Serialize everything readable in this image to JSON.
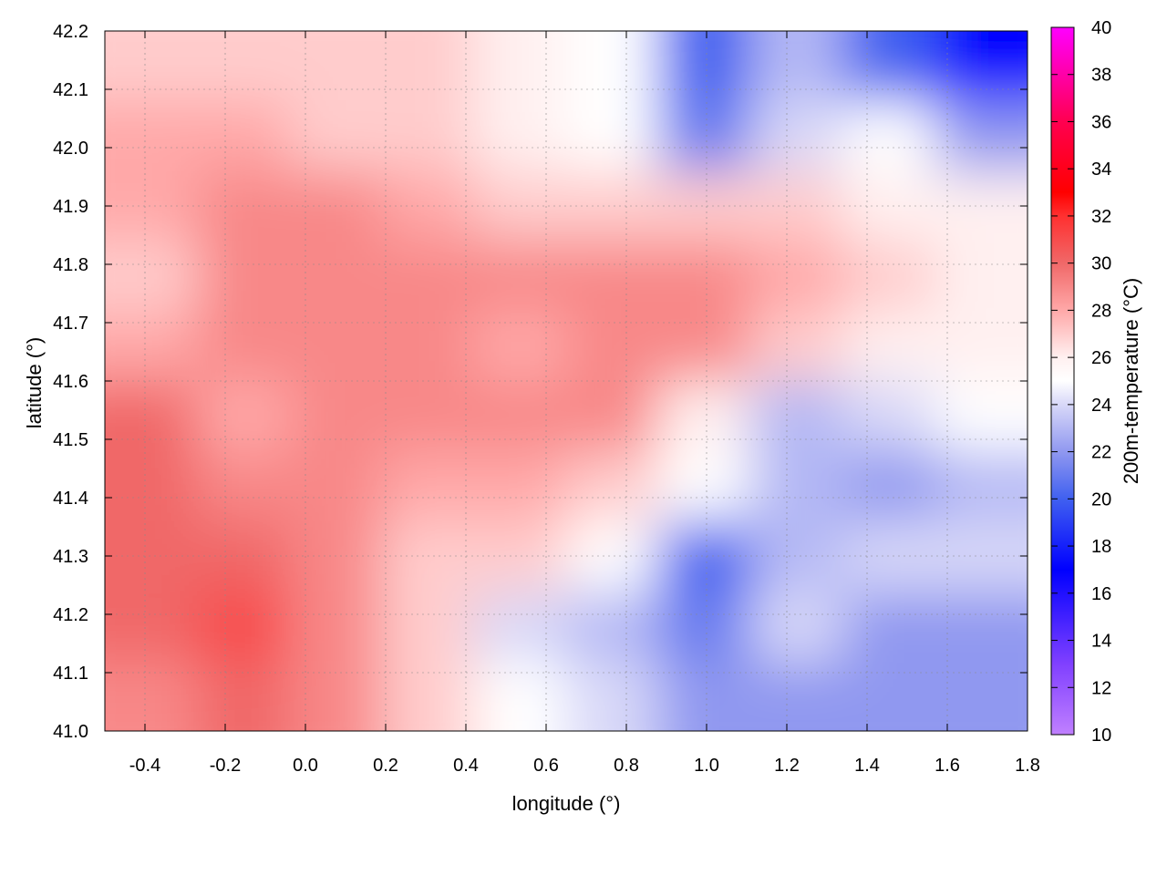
{
  "chart_data": {
    "type": "heatmap",
    "title": "",
    "xlabel": "longitude (°)",
    "ylabel": "latitude (°)",
    "colorbar_label": "200m-temperature (°C)",
    "xlim": [
      -0.5,
      1.8
    ],
    "ylim": [
      41.0,
      42.2
    ],
    "clim": [
      10,
      40
    ],
    "x_ticks": [
      "-0.4",
      "-0.2",
      "0.0",
      "0.2",
      "0.4",
      "0.6",
      "0.8",
      "1.0",
      "1.2",
      "1.4",
      "1.6",
      "1.8"
    ],
    "y_ticks": [
      "41.0",
      "41.1",
      "41.2",
      "41.3",
      "41.4",
      "41.5",
      "41.6",
      "41.7",
      "41.8",
      "41.9",
      "42.0",
      "42.1",
      "42.2"
    ],
    "colorbar_ticks": [
      "10",
      "12",
      "14",
      "16",
      "18",
      "20",
      "22",
      "24",
      "26",
      "28",
      "30",
      "32",
      "34",
      "36",
      "38",
      "40"
    ],
    "grid": true,
    "colormap": [
      [
        10,
        "#c080ff"
      ],
      [
        13,
        "#8040ff"
      ],
      [
        17,
        "#0000ff"
      ],
      [
        20,
        "#4060f0"
      ],
      [
        22,
        "#9098f0"
      ],
      [
        24,
        "#d8d8f8"
      ],
      [
        25,
        "#ffffff"
      ],
      [
        26,
        "#fff0f0"
      ],
      [
        28,
        "#ffa8a8"
      ],
      [
        30,
        "#f06868"
      ],
      [
        32,
        "#ff3030"
      ],
      [
        33,
        "#ff0000"
      ],
      [
        36,
        "#ff0050"
      ],
      [
        40,
        "#ff00ff"
      ]
    ],
    "grid_lon_edges": [
      -0.5,
      -0.27,
      -0.04,
      0.19,
      0.42,
      0.65,
      0.88,
      1.11,
      1.34,
      1.57,
      1.8
    ],
    "grid_lat_edges_top_to_bottom": [
      42.2,
      42.08,
      41.96,
      41.84,
      41.72,
      41.6,
      41.48,
      41.36,
      41.24,
      41.12,
      41.0
    ],
    "values": [
      [
        27,
        27,
        27,
        27,
        26,
        25,
        20,
        23,
        20,
        17
      ],
      [
        28,
        28,
        27,
        27,
        26,
        25,
        21,
        24,
        25,
        22
      ],
      [
        28,
        29,
        29,
        28,
        27,
        27,
        27,
        27,
        26,
        26
      ],
      [
        27,
        29,
        29,
        29,
        29,
        29,
        29,
        28,
        27,
        26
      ],
      [
        28,
        29,
        29,
        29,
        28,
        29,
        29,
        27,
        26,
        26
      ],
      [
        30,
        28,
        29,
        29,
        29,
        29,
        26,
        23,
        24,
        25
      ],
      [
        30,
        29,
        29,
        28,
        28,
        27,
        25,
        23,
        22,
        23
      ],
      [
        30,
        30,
        29,
        27,
        27,
        25,
        20,
        23,
        24,
        24
      ],
      [
        30,
        31,
        29,
        27,
        24,
        23,
        21,
        24,
        22,
        22
      ],
      [
        29,
        30,
        29,
        27,
        25,
        24,
        22,
        22,
        22,
        22
      ]
    ]
  }
}
